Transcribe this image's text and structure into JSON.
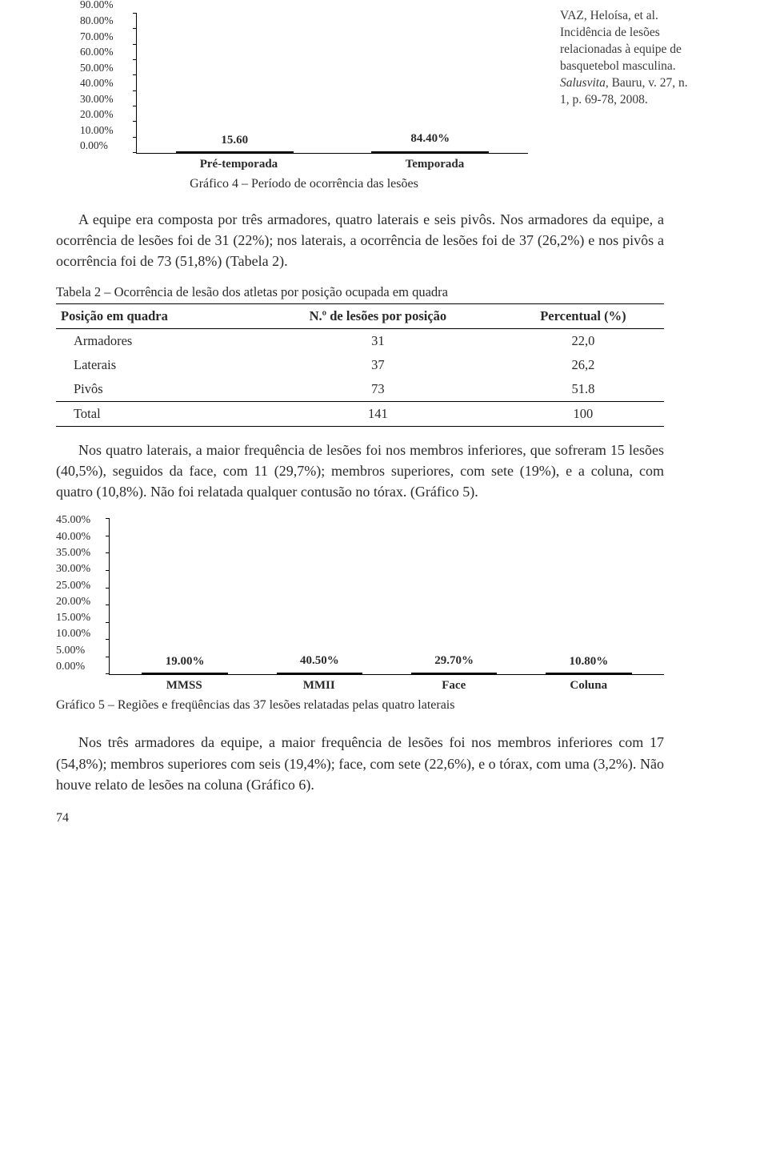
{
  "sidenote": {
    "authors_line": "VAZ, Heloísa, et al.",
    "title_line": " Incidência de lesões relacionadas à equipe de basquetebol masculina. ",
    "journal": "Salusvita",
    "journal_rest": ", Bauru, v. 27, n. 1, p. 69-78, 2008."
  },
  "chart4": {
    "caption": "Gráfico 4 – Período de ocorrência das lesões",
    "ylabels": [
      "0.00%",
      "10.00%",
      "20.00%",
      "30.00%",
      "40.00%",
      "50.00%",
      "60.00%",
      "70.00%",
      "80.00%",
      "90.00%"
    ],
    "ymax": 90,
    "bars": [
      {
        "label": "Pré-temporada",
        "value": 15.6,
        "value_text": "15.60",
        "color": "#b4b4b4"
      },
      {
        "label": "Temporada",
        "value": 84.4,
        "value_text": "84.40%",
        "color": "#b4b4b4"
      }
    ]
  },
  "para1": "A equipe era composta por três armadores, quatro laterais e seis pivôs. Nos armadores da equipe, a ocorrência de lesões foi de 31 (22%); nos laterais, a ocorrência de lesões foi de 37 (26,2%) e nos pivôs a ocorrência foi de 73 (51,8%) (Tabela 2).",
  "table2": {
    "caption": "Tabela 2 – Ocorrência de lesão dos atletas por posição ocupada em quadra",
    "headers": [
      "Posição em quadra",
      "N.º de lesões por posição",
      "Percentual (%)"
    ],
    "rows": [
      [
        "Armadores",
        "31",
        "22,0"
      ],
      [
        "Laterais",
        "37",
        "26,2"
      ],
      [
        "Pivôs",
        "73",
        "51.8"
      ]
    ],
    "sumrow": [
      "Total",
      "141",
      "100"
    ]
  },
  "para2": "Nos quatro laterais, a maior frequência de lesões foi nos membros inferiores, que sofreram 15 lesões (40,5%), seguidos da face, com 11 (29,7%); membros superiores, com sete (19%), e a coluna, com quatro (10,8%). Não foi relatada qualquer contusão no tórax. (Gráfico 5).",
  "chart5": {
    "caption": "Gráfico 5 – Regiões e freqüências das 37 lesões relatadas pelas quatro laterais",
    "ylabels": [
      "0.00%",
      "5.00%",
      "10.00%",
      "15.00%",
      "20.00%",
      "25.00%",
      "30.00%",
      "35.00%",
      "40.00%",
      "45.00%"
    ],
    "ymax": 45,
    "bars": [
      {
        "label": "MMSS",
        "value": 19.0,
        "value_text": "19.00%",
        "color": "#dcdcdc"
      },
      {
        "label": "MMII",
        "value": 40.5,
        "value_text": "40.50%",
        "color": "#6e6e6e"
      },
      {
        "label": "Face",
        "value": 29.7,
        "value_text": "29.70%",
        "color": "#b4b4b4"
      },
      {
        "label": "Coluna",
        "value": 10.8,
        "value_text": "10.80%",
        "color": "#b4b4b4"
      }
    ]
  },
  "para3": "Nos três armadores da equipe, a maior frequência de lesões foi nos membros inferiores com 17 (54,8%); membros superiores com seis (19,4%); face, com sete (22,6%), e o tórax, com uma (3,2%). Não houve relato de lesões na coluna (Gráfico 6).",
  "page_number": "74"
}
